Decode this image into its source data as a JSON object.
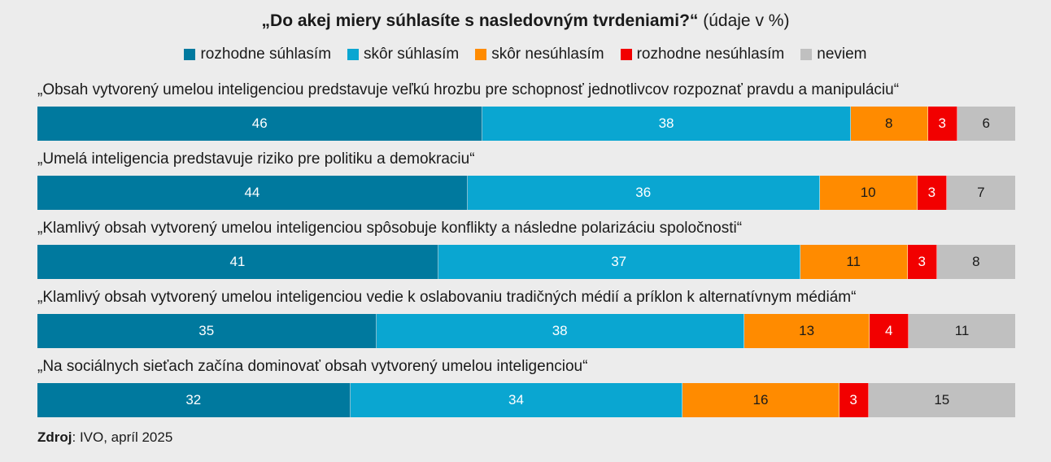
{
  "title": {
    "bold": "„Do akej miery súhlasíte s nasledovným tvrdeniami?“",
    "normal": " (údaje v %)"
  },
  "source": {
    "label": "Zdroj",
    "text": ": IVO, apríl 2025"
  },
  "chart_data": {
    "type": "bar",
    "orientation": "horizontal-stacked-100",
    "title": "„Do akej miery súhlasíte s nasledovným tvrdeniami?“ (údaje v %)",
    "legend_position": "top",
    "series": [
      {
        "name": "rozhodne súhlasím",
        "color": "#00799e",
        "text_color": "#ffffff",
        "values": [
          46,
          44,
          41,
          35,
          32
        ]
      },
      {
        "name": "skôr súhlasím",
        "color": "#0aa6d1",
        "text_color": "#ffffff",
        "values": [
          38,
          36,
          37,
          38,
          34
        ]
      },
      {
        "name": "skôr nesúhlasím",
        "color": "#ff8b00",
        "text_color": "#1a1a1a",
        "values": [
          8,
          10,
          11,
          13,
          16
        ]
      },
      {
        "name": "rozhodne nesúhlasím",
        "color": "#f20000",
        "text_color": "#ffffff",
        "values": [
          3,
          3,
          3,
          4,
          3
        ]
      },
      {
        "name": "neviem",
        "color": "#c0c0c0",
        "text_color": "#1a1a1a",
        "values": [
          6,
          7,
          8,
          11,
          15
        ]
      }
    ],
    "categories": [
      "„Obsah vytvorený umelou inteligenciou predstavuje veľkú hrozbu pre schopnosť jednotlivcov rozpoznať pravdu a manipuláciu“",
      "„Umelá inteligencia predstavuje riziko pre politiku a demokraciu“",
      "„Klamlivý obsah vytvorený umelou inteligenciou spôsobuje konflikty a následne polarizáciu spoločnosti“",
      "„Klamlivý obsah vytvorený umelou inteligenciou vedie k oslabovaniu tradičných médií a príklon k alternatívnym médiám“",
      "„Na sociálnych sieťach začína dominovať obsah vytvorený umelou inteligenciou“"
    ]
  }
}
